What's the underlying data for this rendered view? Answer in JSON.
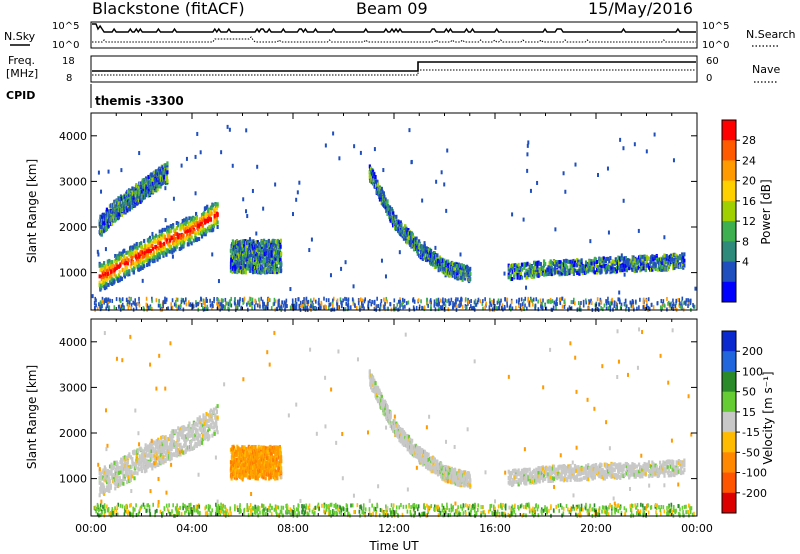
{
  "header": {
    "title": "Blackstone (fitACF)",
    "beam": "Beam 09",
    "date": "15/May/2016"
  },
  "status_panels": {
    "nsky_label": "N.Sky",
    "nsearch_label": "N.Search",
    "nsky_ticks": [
      "10^5",
      "10^0"
    ],
    "nsearch_ticks": [
      "10^5",
      "10^0"
    ],
    "freq_label_line1": "Freq.",
    "freq_label_line2": "[MHz]",
    "freq_ticks": [
      "18",
      "8"
    ],
    "nave_label": "Nave",
    "nave_ticks": [
      "60",
      "0"
    ],
    "cpid_label": "CPID",
    "cpid_text": "themis -3300"
  },
  "chart_data": [
    {
      "type": "heatmap",
      "panel": "power",
      "ylabel": "Slant Range [km]",
      "yticks": [
        "4000",
        "3000",
        "2000",
        "1000"
      ],
      "ylim": [
        180,
        4500
      ],
      "xlim": [
        0,
        24
      ],
      "colorbar": {
        "label": "Power [dB]",
        "ticks": [
          "28",
          "24",
          "20",
          "16",
          "12",
          "8",
          "4"
        ],
        "colors": [
          "#ff0000",
          "#ff5a00",
          "#ff9a00",
          "#ffd000",
          "#a0d000",
          "#3fb04f",
          "#2e8a7a",
          "#1f4fbf",
          "#0000ff"
        ]
      },
      "features": [
        {
          "name": "main-band",
          "t": [
            0.3,
            1.0,
            2.0,
            3.0,
            4.0,
            5.0
          ],
          "range": [
            900,
            1100,
            1400,
            1700,
            1950,
            2300
          ],
          "power": "high"
        },
        {
          "name": "upper-band",
          "t": [
            0.3,
            1.0,
            2.0,
            3.0
          ],
          "range": [
            2000,
            2400,
            2800,
            3200
          ],
          "power": "low"
        },
        {
          "name": "evening-patch",
          "t": [
            5.5,
            7.5
          ],
          "range": [
            1000,
            1700
          ],
          "power": "low"
        },
        {
          "name": "arc-1",
          "t": [
            11.0,
            12.0,
            13.0,
            14.0,
            15.0
          ],
          "range": [
            3200,
            2100,
            1500,
            1100,
            950
          ],
          "power": "low"
        },
        {
          "name": "late-band",
          "t": [
            16.5,
            18.0,
            20.0,
            22.0,
            23.5
          ],
          "range": [
            1000,
            1100,
            1150,
            1200,
            1250
          ],
          "power": "low"
        }
      ]
    },
    {
      "type": "heatmap",
      "panel": "velocity",
      "ylabel": "Slant Range [km]",
      "yticks": [
        "4000",
        "3000",
        "2000",
        "1000"
      ],
      "ylim": [
        180,
        4500
      ],
      "xlim": [
        0,
        24
      ],
      "xticks": [
        "00:00",
        "04:00",
        "08:00",
        "12:00",
        "16:00",
        "20:00",
        "00:00"
      ],
      "xlabel": "Time UT",
      "colorbar": {
        "label": "Velocity [m s⁻¹]",
        "ticks": [
          "200",
          "100",
          "50",
          "15",
          "-15",
          "-50",
          "-100",
          "-200"
        ],
        "colors": [
          "#0a2ad0",
          "#2266dd",
          "#2a8a2a",
          "#66cc33",
          "#c8c8c8",
          "#ffbb00",
          "#ff8800",
          "#ff5500",
          "#dd0000"
        ]
      },
      "features": [
        {
          "name": "main-band",
          "t": [
            0.3,
            1.0,
            2.0,
            3.0,
            4.0,
            5.0
          ],
          "range": [
            900,
            1100,
            1400,
            1700,
            1950,
            2300
          ],
          "velocity": "near-zero"
        },
        {
          "name": "evening-patch",
          "t": [
            5.5,
            7.5
          ],
          "range": [
            1000,
            1700
          ],
          "velocity": "negative"
        },
        {
          "name": "arc-1",
          "t": [
            11.0,
            12.0,
            13.0,
            14.0,
            15.0
          ],
          "range": [
            3200,
            2100,
            1500,
            1100,
            950
          ],
          "velocity": "near-zero"
        },
        {
          "name": "late-band",
          "t": [
            16.5,
            18.0,
            20.0,
            22.0,
            23.5
          ],
          "range": [
            1000,
            1100,
            1150,
            1200,
            1250
          ],
          "velocity": "near-zero"
        }
      ]
    }
  ]
}
